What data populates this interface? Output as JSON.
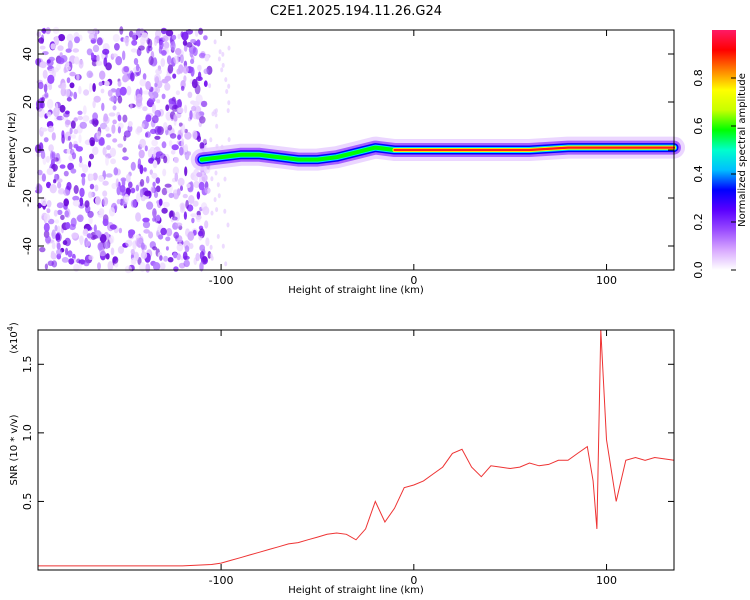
{
  "title": "C2E1.2025.194.11.26.G24",
  "spectrogram": {
    "type": "heatmap",
    "xlabel": "Height of straight line (km)",
    "ylabel": "Frequency (Hz)",
    "x_range": [
      -195,
      135
    ],
    "y_range": [
      -50,
      50
    ],
    "x_ticks": [
      -100,
      0,
      100
    ],
    "y_ticks": [
      -40,
      -20,
      0,
      20,
      40
    ],
    "colorbar": {
      "label": "Normalized spectral amplitude",
      "range": [
        0,
        1
      ],
      "ticks": [
        "0.0",
        "0.2",
        "0.4",
        "0.6",
        "0.8"
      ],
      "colors": [
        "#ffffff",
        "#d8a8ff",
        "#9a4cff",
        "#5a00ff",
        "#0000ff",
        "#00bfff",
        "#00ffcc",
        "#00ff00",
        "#c8ff00",
        "#ffff00",
        "#ff8000",
        "#ff0000",
        "#ff1a66"
      ]
    },
    "noise_region_end_km": -106,
    "signal_track": [
      {
        "x": -110,
        "f": -4
      },
      {
        "x": -100,
        "f": -3
      },
      {
        "x": -90,
        "f": -2
      },
      {
        "x": -80,
        "f": -2
      },
      {
        "x": -70,
        "f": -3
      },
      {
        "x": -60,
        "f": -4
      },
      {
        "x": -50,
        "f": -4
      },
      {
        "x": -40,
        "f": -3
      },
      {
        "x": -30,
        "f": -1
      },
      {
        "x": -20,
        "f": 1
      },
      {
        "x": -10,
        "f": 0
      },
      {
        "x": 0,
        "f": 0
      },
      {
        "x": 20,
        "f": 0
      },
      {
        "x": 40,
        "f": 0
      },
      {
        "x": 60,
        "f": 0
      },
      {
        "x": 80,
        "f": 1
      },
      {
        "x": 100,
        "f": 1
      },
      {
        "x": 120,
        "f": 1
      },
      {
        "x": 135,
        "f": 1
      }
    ]
  },
  "snr": {
    "type": "line",
    "xlabel": "Height of straight line (km)",
    "ylabel": "SNR (10 * v/v)",
    "multiplier": "(x10",
    "multiplier_exp": "4",
    "multiplier_close": ")",
    "x_range": [
      -195,
      135
    ],
    "y_range": [
      0,
      1.75
    ],
    "x_ticks": [
      -100,
      0,
      100
    ],
    "y_ticks": [
      "0.5",
      "1.0",
      "1.5"
    ],
    "color": "#ee3333",
    "x": [
      -195,
      -180,
      -160,
      -140,
      -120,
      -105,
      -100,
      -95,
      -90,
      -85,
      -80,
      -75,
      -70,
      -65,
      -60,
      -55,
      -50,
      -45,
      -40,
      -35,
      -30,
      -25,
      -20,
      -15,
      -10,
      -5,
      0,
      5,
      10,
      15,
      20,
      25,
      30,
      35,
      40,
      45,
      50,
      55,
      60,
      65,
      70,
      75,
      80,
      85,
      90,
      93,
      95,
      97,
      100,
      105,
      110,
      115,
      120,
      125,
      130,
      135
    ],
    "y": [
      0.03,
      0.03,
      0.03,
      0.03,
      0.03,
      0.04,
      0.05,
      0.07,
      0.09,
      0.11,
      0.13,
      0.15,
      0.17,
      0.19,
      0.2,
      0.22,
      0.24,
      0.26,
      0.27,
      0.26,
      0.22,
      0.3,
      0.5,
      0.35,
      0.45,
      0.6,
      0.62,
      0.65,
      0.7,
      0.75,
      0.85,
      0.88,
      0.75,
      0.68,
      0.76,
      0.75,
      0.74,
      0.75,
      0.78,
      0.76,
      0.77,
      0.8,
      0.8,
      0.85,
      0.9,
      0.65,
      0.3,
      1.75,
      0.95,
      0.5,
      0.8,
      0.82,
      0.8,
      0.82,
      0.81,
      0.8
    ]
  }
}
